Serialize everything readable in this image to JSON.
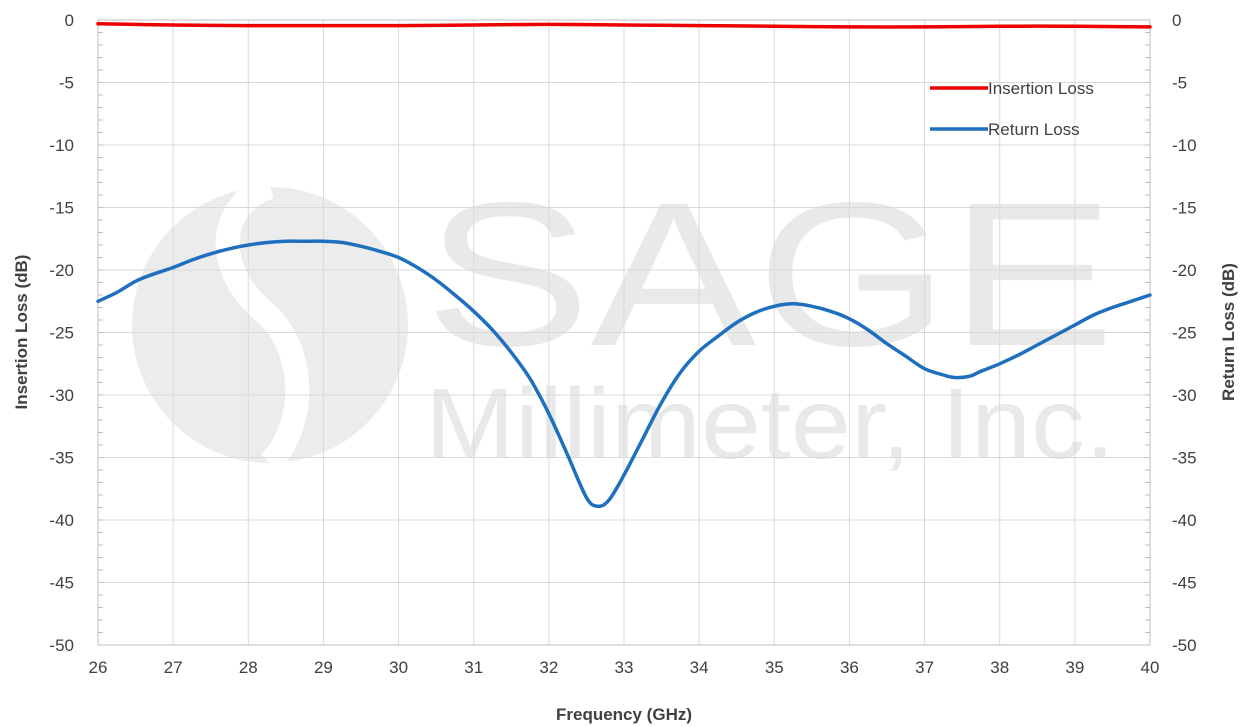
{
  "chart_data": {
    "type": "line",
    "xlabel": "Frequency (GHz)",
    "ylabel_left": "Insertion Loss (dB)",
    "ylabel_right": "Return Loss (dB)",
    "xlim": [
      26,
      40
    ],
    "ylim": [
      -50,
      0
    ],
    "x_ticks": [
      "26",
      "27",
      "28",
      "29",
      "30",
      "31",
      "32",
      "33",
      "34",
      "35",
      "36",
      "37",
      "38",
      "39",
      "40"
    ],
    "y_ticks": [
      "0",
      "-5",
      "-10",
      "-15",
      "-20",
      "-25",
      "-30",
      "-35",
      "-40",
      "-45",
      "-50"
    ],
    "grid": true,
    "legend_position": "top-right",
    "series": [
      {
        "name": "Insertion Loss",
        "color": "#ee0000",
        "axis": "left",
        "x": [
          26,
          27,
          28,
          29,
          30,
          31,
          32,
          33,
          34,
          35,
          36,
          37,
          38,
          39,
          40
        ],
        "y": [
          -0.3,
          -0.4,
          -0.45,
          -0.45,
          -0.45,
          -0.4,
          -0.35,
          -0.4,
          -0.45,
          -0.5,
          -0.55,
          -0.55,
          -0.5,
          -0.5,
          -0.55
        ]
      },
      {
        "name": "Return Loss",
        "color": "#1f6fbf",
        "axis": "right",
        "x": [
          26,
          26.25,
          26.5,
          26.75,
          27,
          27.25,
          27.5,
          27.75,
          28,
          28.25,
          28.5,
          28.75,
          29,
          29.25,
          29.5,
          29.75,
          30,
          30.25,
          30.5,
          30.75,
          31,
          31.25,
          31.5,
          31.75,
          32,
          32.25,
          32.5,
          32.65,
          32.8,
          33,
          33.25,
          33.5,
          33.75,
          34,
          34.25,
          34.5,
          34.75,
          35,
          35.25,
          35.5,
          35.75,
          36,
          36.25,
          36.5,
          36.75,
          37,
          37.25,
          37.4,
          37.6,
          37.75,
          38,
          38.25,
          38.5,
          38.75,
          39,
          39.25,
          39.5,
          39.75,
          40
        ],
        "y": [
          -22.5,
          -21.8,
          -20.9,
          -20.3,
          -19.8,
          -19.2,
          -18.7,
          -18.3,
          -18.0,
          -17.8,
          -17.7,
          -17.7,
          -17.7,
          -17.8,
          -18.1,
          -18.5,
          -19.0,
          -19.8,
          -20.8,
          -22.0,
          -23.3,
          -24.8,
          -26.6,
          -28.7,
          -31.5,
          -34.8,
          -38.2,
          -38.9,
          -38.4,
          -36.4,
          -33.5,
          -30.6,
          -28.2,
          -26.5,
          -25.3,
          -24.2,
          -23.4,
          -22.9,
          -22.7,
          -22.9,
          -23.3,
          -23.9,
          -24.8,
          -25.9,
          -26.9,
          -27.9,
          -28.4,
          -28.6,
          -28.5,
          -28.1,
          -27.5,
          -26.8,
          -26.0,
          -25.2,
          -24.4,
          -23.6,
          -23.0,
          -22.5,
          -22.0
        ]
      }
    ],
    "watermark": {
      "line1": "SAGE",
      "line2": "Millimeter, Inc."
    }
  }
}
